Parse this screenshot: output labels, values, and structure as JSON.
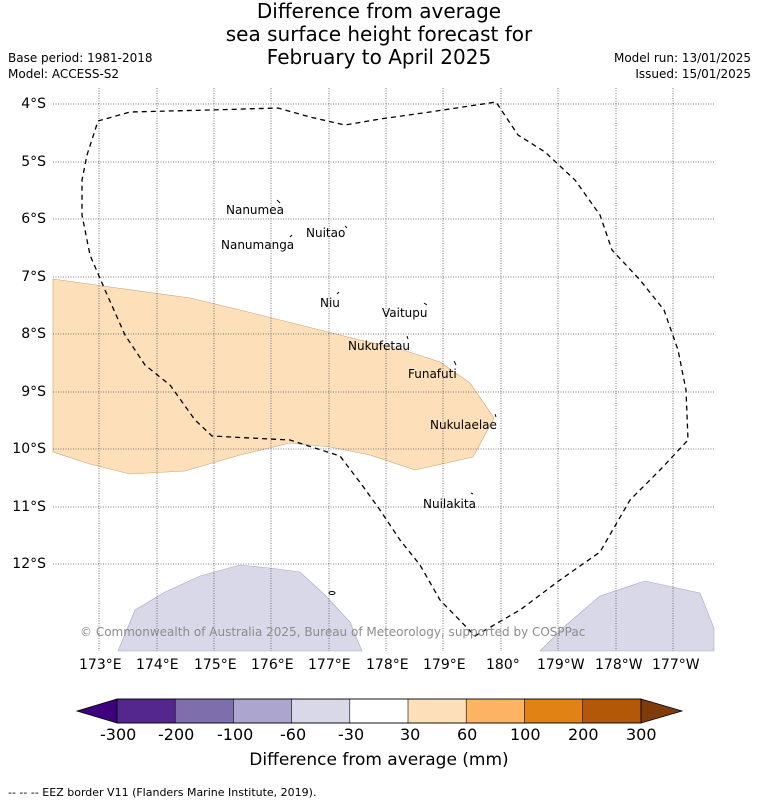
{
  "title": {
    "line1": "Difference from average",
    "line2": "sea surface height forecast for",
    "line3": "February to April 2025"
  },
  "meta": {
    "base_period": "Base period: 1981-2018",
    "model": "Model: ACCESS-S2",
    "model_run": "Model run: 13/01/2025",
    "issued": "Issued: 15/01/2025"
  },
  "latitude_labels": [
    "4°S",
    "5°S",
    "6°S",
    "7°S",
    "8°S",
    "9°S",
    "10°S",
    "11°S",
    "12°S"
  ],
  "longitude_labels": [
    "173°E",
    "174°E",
    "175°E",
    "176°E",
    "177°E",
    "178°E",
    "179°E",
    "180°",
    "179°W",
    "178°W",
    "177°W"
  ],
  "islands": [
    "Nanumea",
    "Nuitao",
    "Nanumanga",
    "Niu",
    "Vaitupu",
    "Nukufetau",
    "Funafuti",
    "Nukulaelae",
    "Nuilakita"
  ],
  "anomaly_colors": {
    "positive_30_60": "#fde0b9",
    "negative_30_60": "#d8d8e9"
  },
  "copyright": "© Commonwealth of Australia 2025, Bureau of Meteorology, supported by COSPPac",
  "colorbar": {
    "tick_labels": [
      "-300",
      "-200",
      "-100",
      "-60",
      "-30",
      "30",
      "60",
      "100",
      "200",
      "300"
    ],
    "colors": [
      "#3f007d",
      "#54278f",
      "#7e6fac",
      "#aca6cf",
      "#d8d8e9",
      "#ffffff",
      "#fde0b9",
      "#fdb462",
      "#e08214",
      "#b35806",
      "#7f3b08"
    ],
    "title": "Difference from average (mm)"
  },
  "footnote": "-- -- -- EEZ border V11 (Flanders Marine Institute, 2019)."
}
